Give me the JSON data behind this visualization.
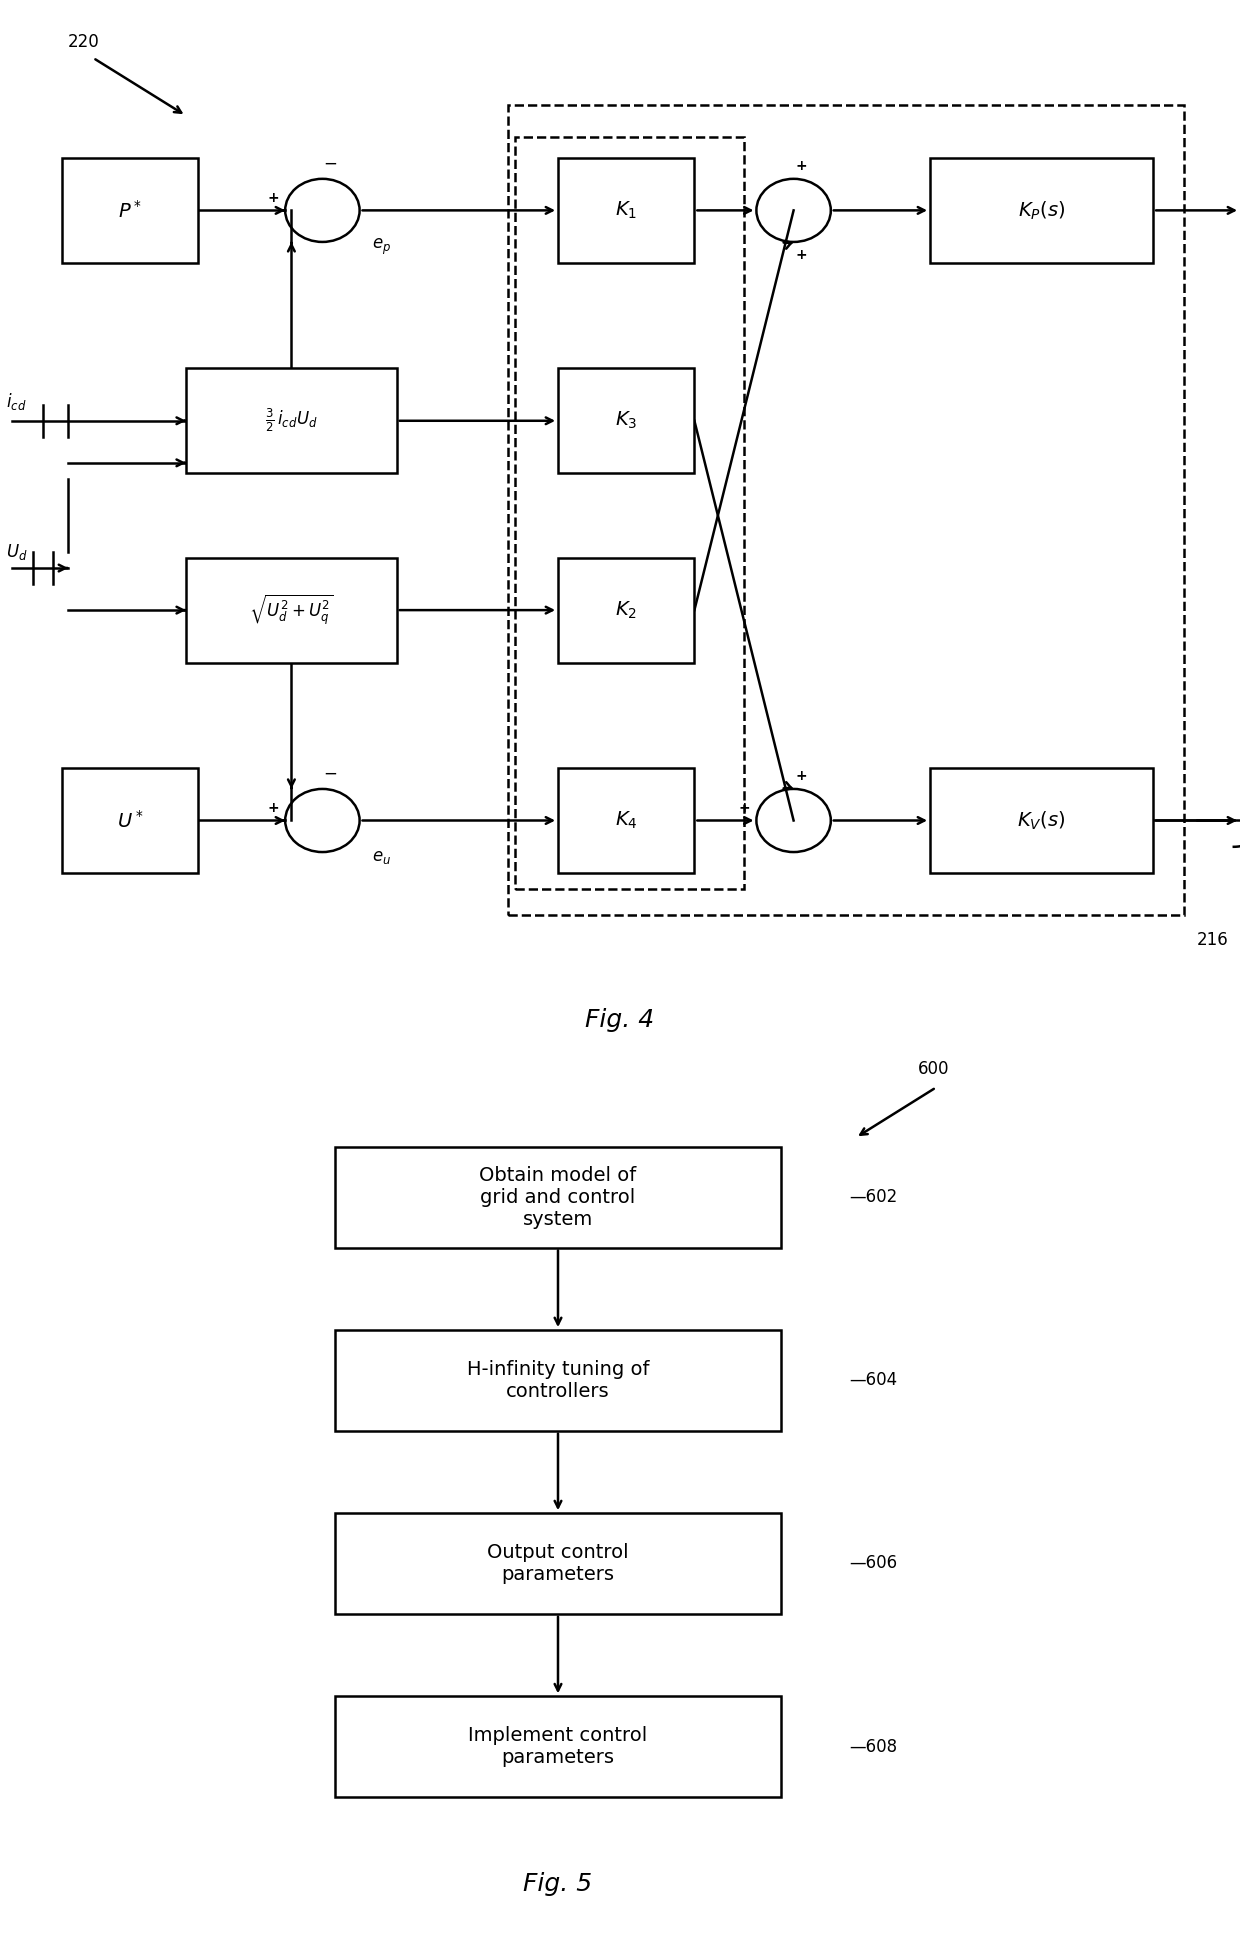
{
  "colors": {
    "black": "#000000",
    "white": "#ffffff",
    "bg": "#ffffff"
  },
  "fig4_title": "Fig. 4",
  "fig5_title": "Fig. 5",
  "label_220": "220",
  "label_216": "216",
  "label_600": "600",
  "fig5_boxes": [
    {
      "label": "Obtain model of\ngrid and control\nsystem",
      "ref": "602"
    },
    {
      "label": "H-infinity tuning of\ncontrollers",
      "ref": "604"
    },
    {
      "label": "Output control\nparameters",
      "ref": "606"
    },
    {
      "label": "Implement control\nparameters",
      "ref": "608"
    }
  ]
}
